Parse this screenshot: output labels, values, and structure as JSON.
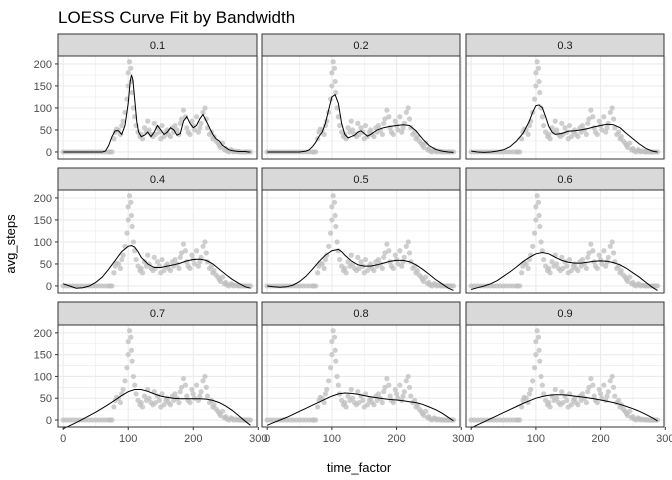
{
  "chart_data": {
    "type": "scatter",
    "title": "LOESS Curve Fit by Bandwidth",
    "xlabel": "time_factor",
    "ylabel": "avg_steps",
    "xlim": [
      -8,
      298
    ],
    "ylim": [
      -16,
      218
    ],
    "x_ticks": [
      0,
      100,
      200,
      300
    ],
    "y_ticks": [
      0,
      50,
      100,
      150,
      200
    ],
    "grid": true,
    "theme": "bw",
    "colors": {
      "points": "#bdbdbd",
      "fit": "#000000",
      "strip": "#d9d9d9",
      "grid": "#ebebeb",
      "border": "#333333"
    },
    "facets": [
      "0.1",
      "0.2",
      "0.3",
      "0.4",
      "0.5",
      "0.6",
      "0.7",
      "0.8",
      "0.9"
    ],
    "points": {
      "x": [
        0,
        5,
        10,
        15,
        20,
        25,
        30,
        35,
        40,
        45,
        50,
        55,
        60,
        65,
        70,
        72,
        75,
        78,
        80,
        82,
        85,
        88,
        90,
        92,
        95,
        98,
        100,
        100,
        102,
        104,
        105,
        106,
        108,
        110,
        112,
        115,
        118,
        120,
        122,
        125,
        128,
        130,
        132,
        135,
        138,
        140,
        142,
        145,
        148,
        150,
        152,
        155,
        158,
        160,
        162,
        165,
        168,
        170,
        172,
        175,
        178,
        180,
        182,
        185,
        188,
        190,
        192,
        195,
        198,
        200,
        202,
        205,
        208,
        210,
        212,
        215,
        218,
        220,
        222,
        225,
        228,
        230,
        232,
        235,
        238,
        240,
        242,
        245,
        248,
        250,
        252,
        255,
        258,
        260,
        262,
        265,
        268,
        270,
        272,
        275,
        278,
        280,
        282,
        285,
        288
      ],
      "y": [
        0,
        0,
        0,
        0,
        0,
        0,
        0,
        0,
        0,
        0,
        0,
        0,
        0,
        0,
        0,
        0,
        0,
        30,
        45,
        52,
        50,
        40,
        60,
        70,
        90,
        120,
        150,
        180,
        205,
        190,
        160,
        135,
        100,
        80,
        60,
        45,
        35,
        40,
        30,
        55,
        45,
        70,
        50,
        40,
        35,
        65,
        40,
        55,
        45,
        30,
        60,
        35,
        45,
        50,
        40,
        35,
        55,
        45,
        60,
        50,
        40,
        65,
        75,
        95,
        80,
        55,
        45,
        40,
        70,
        60,
        50,
        80,
        45,
        55,
        65,
        90,
        100,
        75,
        55,
        40,
        45,
        30,
        35,
        25,
        20,
        15,
        10,
        20,
        5,
        8,
        2,
        0,
        5,
        3,
        0,
        2,
        0,
        1,
        0,
        0,
        0,
        0,
        0,
        0,
        0
      ]
    },
    "fits": [
      {
        "span": "0.1",
        "x": [
          0,
          10,
          20,
          30,
          40,
          50,
          60,
          65,
          70,
          75,
          80,
          85,
          90,
          95,
          100,
          103,
          105,
          107,
          110,
          113,
          116,
          120,
          125,
          130,
          135,
          140,
          145,
          150,
          155,
          160,
          165,
          170,
          175,
          180,
          185,
          190,
          195,
          200,
          205,
          210,
          215,
          220,
          225,
          230,
          235,
          240,
          245,
          250,
          255,
          260,
          265,
          270,
          275,
          280,
          285,
          288
        ],
        "y": [
          0,
          0,
          0,
          0,
          0,
          0,
          0,
          2,
          15,
          35,
          48,
          48,
          40,
          60,
          110,
          160,
          175,
          165,
          120,
          70,
          45,
          35,
          38,
          45,
          35,
          45,
          60,
          50,
          40,
          45,
          55,
          50,
          38,
          42,
          70,
          80,
          65,
          55,
          60,
          75,
          85,
          70,
          55,
          40,
          30,
          25,
          15,
          10,
          5,
          3,
          2,
          1,
          1,
          1,
          0,
          0
        ]
      },
      {
        "span": "0.2",
        "x": [
          0,
          10,
          20,
          30,
          40,
          50,
          60,
          65,
          70,
          75,
          80,
          85,
          90,
          95,
          100,
          105,
          110,
          115,
          120,
          125,
          130,
          135,
          140,
          145,
          150,
          155,
          160,
          170,
          180,
          190,
          200,
          210,
          220,
          230,
          240,
          250,
          260,
          270,
          280,
          288
        ],
        "y": [
          0,
          0,
          0,
          0,
          0,
          0,
          2,
          5,
          12,
          22,
          35,
          45,
          65,
          95,
          125,
          130,
          110,
          65,
          40,
          32,
          35,
          38,
          45,
          48,
          42,
          36,
          40,
          50,
          55,
          58,
          60,
          62,
          60,
          48,
          30,
          15,
          6,
          2,
          0,
          -1
        ]
      },
      {
        "span": "0.3",
        "x": [
          0,
          10,
          20,
          30,
          40,
          50,
          60,
          70,
          80,
          90,
          95,
          100,
          105,
          110,
          115,
          120,
          125,
          130,
          140,
          150,
          160,
          170,
          180,
          190,
          200,
          210,
          220,
          230,
          240,
          250,
          260,
          270,
          280,
          288
        ],
        "y": [
          2,
          0,
          -1,
          0,
          2,
          5,
          12,
          25,
          42,
          70,
          90,
          105,
          107,
          100,
          80,
          58,
          45,
          40,
          42,
          47,
          48,
          50,
          53,
          57,
          60,
          63,
          62,
          55,
          42,
          30,
          18,
          8,
          2,
          0
        ]
      },
      {
        "span": "0.4",
        "x": [
          0,
          10,
          20,
          30,
          40,
          50,
          60,
          70,
          80,
          90,
          100,
          105,
          110,
          115,
          120,
          130,
          140,
          150,
          160,
          170,
          180,
          190,
          200,
          210,
          220,
          230,
          240,
          250,
          260,
          270,
          280,
          288
        ],
        "y": [
          5,
          0,
          -5,
          -4,
          0,
          8,
          20,
          38,
          58,
          78,
          90,
          92,
          88,
          78,
          65,
          50,
          42,
          42,
          45,
          48,
          52,
          57,
          60,
          61,
          58,
          50,
          38,
          26,
          15,
          6,
          -2,
          -5
        ]
      },
      {
        "span": "0.5",
        "x": [
          0,
          10,
          20,
          30,
          40,
          50,
          60,
          70,
          80,
          90,
          100,
          110,
          115,
          120,
          130,
          140,
          150,
          160,
          170,
          180,
          190,
          200,
          210,
          220,
          230,
          240,
          250,
          260,
          270,
          280,
          288
        ],
        "y": [
          0,
          -2,
          -3,
          -2,
          2,
          10,
          22,
          38,
          55,
          70,
          80,
          83,
          78,
          70,
          57,
          48,
          45,
          45,
          48,
          52,
          56,
          58,
          58,
          55,
          48,
          38,
          27,
          15,
          5,
          -5,
          -10
        ]
      },
      {
        "span": "0.6",
        "x": [
          0,
          10,
          20,
          30,
          40,
          50,
          60,
          70,
          80,
          90,
          100,
          110,
          120,
          130,
          140,
          150,
          160,
          170,
          180,
          190,
          200,
          210,
          220,
          230,
          240,
          250,
          260,
          270,
          280,
          288
        ],
        "y": [
          -8,
          -4,
          0,
          5,
          12,
          22,
          32,
          43,
          55,
          65,
          73,
          76,
          73,
          65,
          58,
          54,
          52,
          52,
          54,
          56,
          57,
          56,
          53,
          48,
          40,
          30,
          20,
          8,
          -3,
          -10
        ]
      },
      {
        "span": "0.7",
        "x": [
          0,
          10,
          20,
          30,
          40,
          50,
          60,
          70,
          80,
          90,
          100,
          110,
          120,
          130,
          140,
          150,
          160,
          170,
          180,
          190,
          200,
          210,
          220,
          230,
          240,
          250,
          260,
          270,
          280,
          288
        ],
        "y": [
          -20,
          -13,
          -6,
          2,
          10,
          18,
          27,
          36,
          46,
          56,
          65,
          70,
          70,
          66,
          60,
          55,
          52,
          50,
          49,
          49,
          49,
          49,
          48,
          45,
          40,
          32,
          22,
          10,
          -3,
          -12
        ]
      },
      {
        "span": "0.8",
        "x": [
          0,
          10,
          20,
          30,
          40,
          50,
          60,
          70,
          80,
          90,
          100,
          110,
          120,
          130,
          140,
          150,
          160,
          170,
          180,
          190,
          200,
          210,
          220,
          230,
          240,
          250,
          260,
          270,
          280,
          288
        ],
        "y": [
          -12,
          -6,
          0,
          6,
          13,
          20,
          27,
          34,
          41,
          48,
          55,
          60,
          62,
          61,
          59,
          56,
          53,
          51,
          49,
          47,
          46,
          44,
          42,
          40,
          36,
          30,
          24,
          16,
          6,
          -2
        ]
      },
      {
        "span": "0.9",
        "x": [
          0,
          10,
          20,
          30,
          40,
          50,
          60,
          70,
          80,
          90,
          100,
          110,
          120,
          130,
          140,
          150,
          160,
          170,
          180,
          190,
          200,
          210,
          220,
          230,
          240,
          250,
          260,
          270,
          280,
          288
        ],
        "y": [
          -18,
          -11,
          -4,
          3,
          10,
          17,
          24,
          31,
          38,
          44,
          50,
          54,
          57,
          58,
          58,
          57,
          55,
          53,
          51,
          49,
          46,
          43,
          40,
          36,
          31,
          26,
          20,
          13,
          5,
          -2
        ]
      }
    ]
  }
}
